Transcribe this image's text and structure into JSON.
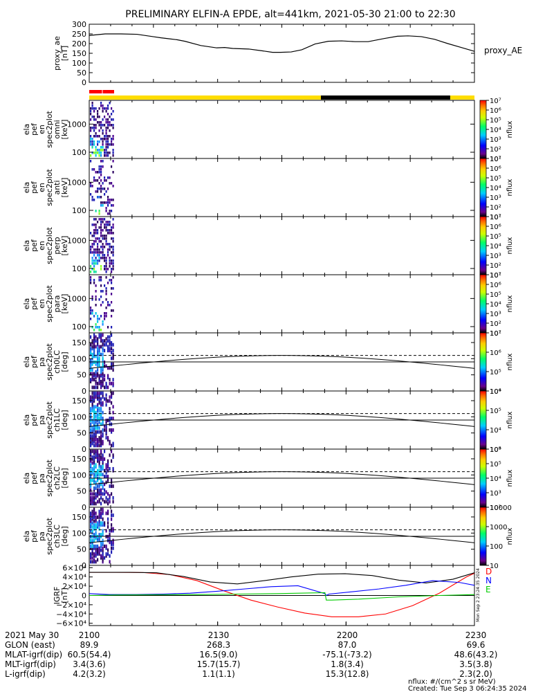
{
  "title": "PRELIMINARY ELFIN-A EPDE, alt=441km, 2021-05-30 21:00 to 22:30",
  "colors": {
    "red": "#ff0000",
    "yellow": "#ffdd00",
    "black": "#000000",
    "green": "#00cc00",
    "blue": "#0000ff"
  },
  "chart_data": [
    {
      "type": "line",
      "panel": "proxy_ae",
      "ylabel": [
        "proxy_ae",
        "[nT]"
      ],
      "legend": "proxy_AE",
      "ylim": [
        0,
        300
      ],
      "yticks": [
        "300",
        "250",
        "200",
        "150",
        "100",
        "50",
        "0"
      ],
      "x_minutes": [
        0,
        12,
        24,
        36,
        48,
        54,
        60,
        66,
        72,
        84,
        96,
        102,
        108,
        120,
        130,
        138,
        144,
        152,
        160,
        170,
        180,
        190,
        200,
        210,
        222,
        232,
        240,
        250,
        260,
        270,
        280,
        290
      ],
      "values": [
        242,
        250,
        250,
        248,
        236,
        230,
        225,
        220,
        212,
        190,
        178,
        180,
        175,
        172,
        163,
        155,
        155,
        157,
        168,
        198,
        212,
        214,
        210,
        210,
        226,
        238,
        240,
        236,
        222,
        200,
        180,
        160
      ]
    },
    {
      "type": "status_bar",
      "panel": "orbit_bar",
      "segments": [
        {
          "from": 0,
          "to": 10,
          "color": "red"
        },
        {
          "from": 10,
          "to": 19,
          "color": "red"
        },
        {
          "from": 0,
          "to": 172,
          "color": "yellow"
        },
        {
          "from": 172,
          "to": 268,
          "color": "black"
        },
        {
          "from": 268,
          "to": 286,
          "color": "yellow"
        }
      ]
    },
    {
      "type": "heatmap",
      "panel": "spec_omni",
      "ylabel": [
        "ela",
        "pef",
        "en",
        "spec2plot",
        "omni",
        "[keV]"
      ],
      "ylim": [
        60,
        7000
      ],
      "ylog": true,
      "yticks": [
        "1000",
        "100"
      ],
      "colorbar": {
        "label": "nflux",
        "range": [
          10,
          10000000
        ],
        "ticks": [
          "10⁷",
          "10⁶",
          "10⁵",
          "10⁴",
          "10³",
          "10²",
          "10¹"
        ]
      }
    },
    {
      "type": "heatmap",
      "panel": "spec_anti",
      "ylabel": [
        "ela",
        "pef",
        "en",
        "spec2plot",
        "anti",
        "[keV]"
      ],
      "ylim": [
        60,
        7000
      ],
      "ylog": true,
      "yticks": [
        "1000",
        "100"
      ],
      "colorbar": {
        "label": "nflux",
        "range": [
          10,
          10000000
        ],
        "ticks": [
          "10⁷",
          "10⁶",
          "10⁵",
          "10⁴",
          "10³",
          "10²",
          "10¹"
        ]
      }
    },
    {
      "type": "heatmap",
      "panel": "spec_perp",
      "ylabel": [
        "ela",
        "pef",
        "en",
        "spec2plot",
        "perp",
        "[keV]"
      ],
      "ylim": [
        60,
        7000
      ],
      "ylog": true,
      "yticks": [
        "1000",
        "100"
      ],
      "colorbar": {
        "label": "nflux",
        "range": [
          10,
          10000000
        ],
        "ticks": [
          "10⁷",
          "10⁶",
          "10⁵",
          "10⁴",
          "10³",
          "10²",
          "10¹"
        ]
      }
    },
    {
      "type": "heatmap",
      "panel": "spec_para",
      "ylabel": [
        "ela",
        "pef",
        "en",
        "spec2plot",
        "para",
        "[keV]"
      ],
      "ylim": [
        60,
        7000
      ],
      "ylog": true,
      "yticks": [
        "1000",
        "100"
      ],
      "colorbar": {
        "label": "nflux",
        "range": [
          10,
          10000000
        ],
        "ticks": [
          "10⁷",
          "10⁶",
          "10⁵",
          "10⁴",
          "10³",
          "10²",
          "10¹"
        ]
      }
    },
    {
      "type": "heatmap",
      "panel": "pa_ch0",
      "ylabel": [
        "ela",
        "pef",
        "pa",
        "spec2plot",
        "ch0LC",
        "[deg]"
      ],
      "ylim": [
        0,
        180
      ],
      "yticks": [
        "150",
        "100",
        "50",
        "0"
      ],
      "colorbar": {
        "label": "nflux",
        "range": [
          1000,
          10000000
        ],
        "ticks": [
          "10⁷",
          "10⁶",
          "10⁵",
          "10⁴"
        ]
      }
    },
    {
      "type": "heatmap",
      "panel": "pa_ch1",
      "ylabel": [
        "ela",
        "pef",
        "pa",
        "spec2plot",
        "ch1LC",
        "[deg]"
      ],
      "ylim": [
        0,
        180
      ],
      "yticks": [
        "150",
        "100",
        "50",
        "0"
      ],
      "colorbar": {
        "label": "nflux",
        "range": [
          100,
          10000000
        ],
        "ticks": [
          "10⁶",
          "10⁵",
          "10⁴",
          "10³"
        ]
      }
    },
    {
      "type": "heatmap",
      "panel": "pa_ch2",
      "ylabel": [
        "ela",
        "pef",
        "pa",
        "spec2plot",
        "ch2LC",
        "[deg]"
      ],
      "ylim": [
        0,
        180
      ],
      "yticks": [
        "150",
        "100",
        "50",
        "0"
      ],
      "colorbar": {
        "label": "nflux",
        "range": [
          10,
          10000000
        ],
        "ticks": [
          "10⁶",
          "10⁵",
          "10⁴",
          "10³",
          "10²"
        ]
      }
    },
    {
      "type": "heatmap",
      "panel": "pa_ch3",
      "ylabel": [
        "ela",
        "pef",
        "pa",
        "spec2plot",
        "ch3LC",
        "[deg]"
      ],
      "ylim": [
        0,
        180
      ],
      "yticks": [
        "150",
        "100",
        "50",
        "0"
      ],
      "colorbar": {
        "label": "nflux",
        "range": [
          10,
          10000
        ],
        "ticks": [
          "10000",
          "1000",
          "100",
          "10"
        ]
      }
    },
    {
      "type": "line",
      "panel": "igrf",
      "ylabel": [
        "IGRF",
        "[nT]"
      ],
      "ylim": [
        -65000,
        65000
      ],
      "yticks": [
        "6×10⁴",
        "4×10⁴",
        "2×10⁴",
        "0",
        "−2×10⁴",
        "−4×10⁴",
        "−6×10⁴"
      ],
      "legend": [
        "D",
        "N",
        "E"
      ],
      "side_note": "Mon Sep  2 23:24:35 2024",
      "series": [
        {
          "name": "D",
          "color": "red",
          "x": [
            0,
            20,
            40,
            60,
            80,
            100,
            120,
            140,
            160,
            180,
            200,
            220,
            240,
            260,
            280,
            286
          ],
          "values": [
            50000,
            50000,
            49500,
            45000,
            32000,
            10000,
            -10000,
            -25000,
            -38000,
            -46000,
            -46000,
            -40000,
            -22000,
            5000,
            40000,
            48000
          ]
        },
        {
          "name": "black",
          "color": "black",
          "x": [
            0,
            30,
            50,
            70,
            90,
            110,
            130,
            150,
            170,
            190,
            210,
            230,
            250,
            270,
            286
          ],
          "values": [
            50000,
            50000,
            49000,
            41000,
            29000,
            25000,
            32000,
            40000,
            46000,
            47000,
            43000,
            33000,
            27000,
            35000,
            49000
          ]
        },
        {
          "name": "N",
          "color": "blue",
          "x": [
            0,
            15,
            35,
            55,
            75,
            95,
            115,
            135,
            155,
            175,
            176,
            178,
            195,
            215,
            235,
            255,
            275,
            286
          ],
          "values": [
            4000,
            2000,
            2000,
            3000,
            5000,
            9000,
            14000,
            19000,
            21000,
            4000,
            0,
            3000,
            8000,
            14000,
            22000,
            32000,
            28000,
            22000
          ]
        },
        {
          "name": "E",
          "color": "green",
          "x": [
            0,
            20,
            50,
            80,
            110,
            140,
            175,
            176,
            180,
            200,
            230,
            260,
            286
          ],
          "values": [
            0,
            1000,
            1500,
            2000,
            3000,
            4000,
            6000,
            -10000,
            -10000,
            -8000,
            -3000,
            0,
            2000
          ]
        }
      ]
    }
  ],
  "time_axis": {
    "start_minutes": 0,
    "end_minutes": 90,
    "tick_labels": [
      {
        "minute": 0,
        "label": "2100"
      },
      {
        "minute": 30,
        "label": "2130"
      },
      {
        "minute": 60,
        "label": "2200"
      },
      {
        "minute": 90,
        "label": "2230"
      }
    ]
  },
  "ephemeris": {
    "date_label": "2021 May 30",
    "rows": [
      {
        "label": "GLON (east)",
        "values": [
          "89.9",
          "268.3",
          "87.0",
          "69.6"
        ]
      },
      {
        "label": "MLAT-igrf(dip)",
        "values": [
          "60.5(54.4)",
          "16.5(9.0)",
          "-75.1(-73.2)",
          "48.6(43.2)"
        ]
      },
      {
        "label": "MLT-igrf(dip)",
        "values": [
          "3.4(3.6)",
          "15.7(15.7)",
          "1.8(3.4)",
          "3.5(3.8)"
        ]
      },
      {
        "label": "L-igrf(dip)",
        "values": [
          "4.2(3.2)",
          "1.1(1.1)",
          "15.3(12.8)",
          "2.3(2.0)"
        ]
      }
    ]
  },
  "footer": {
    "units": "nflux: #/(cm^2 s sr MeV)",
    "created": "Created: Tue Sep  3 06:24:35 2024"
  }
}
